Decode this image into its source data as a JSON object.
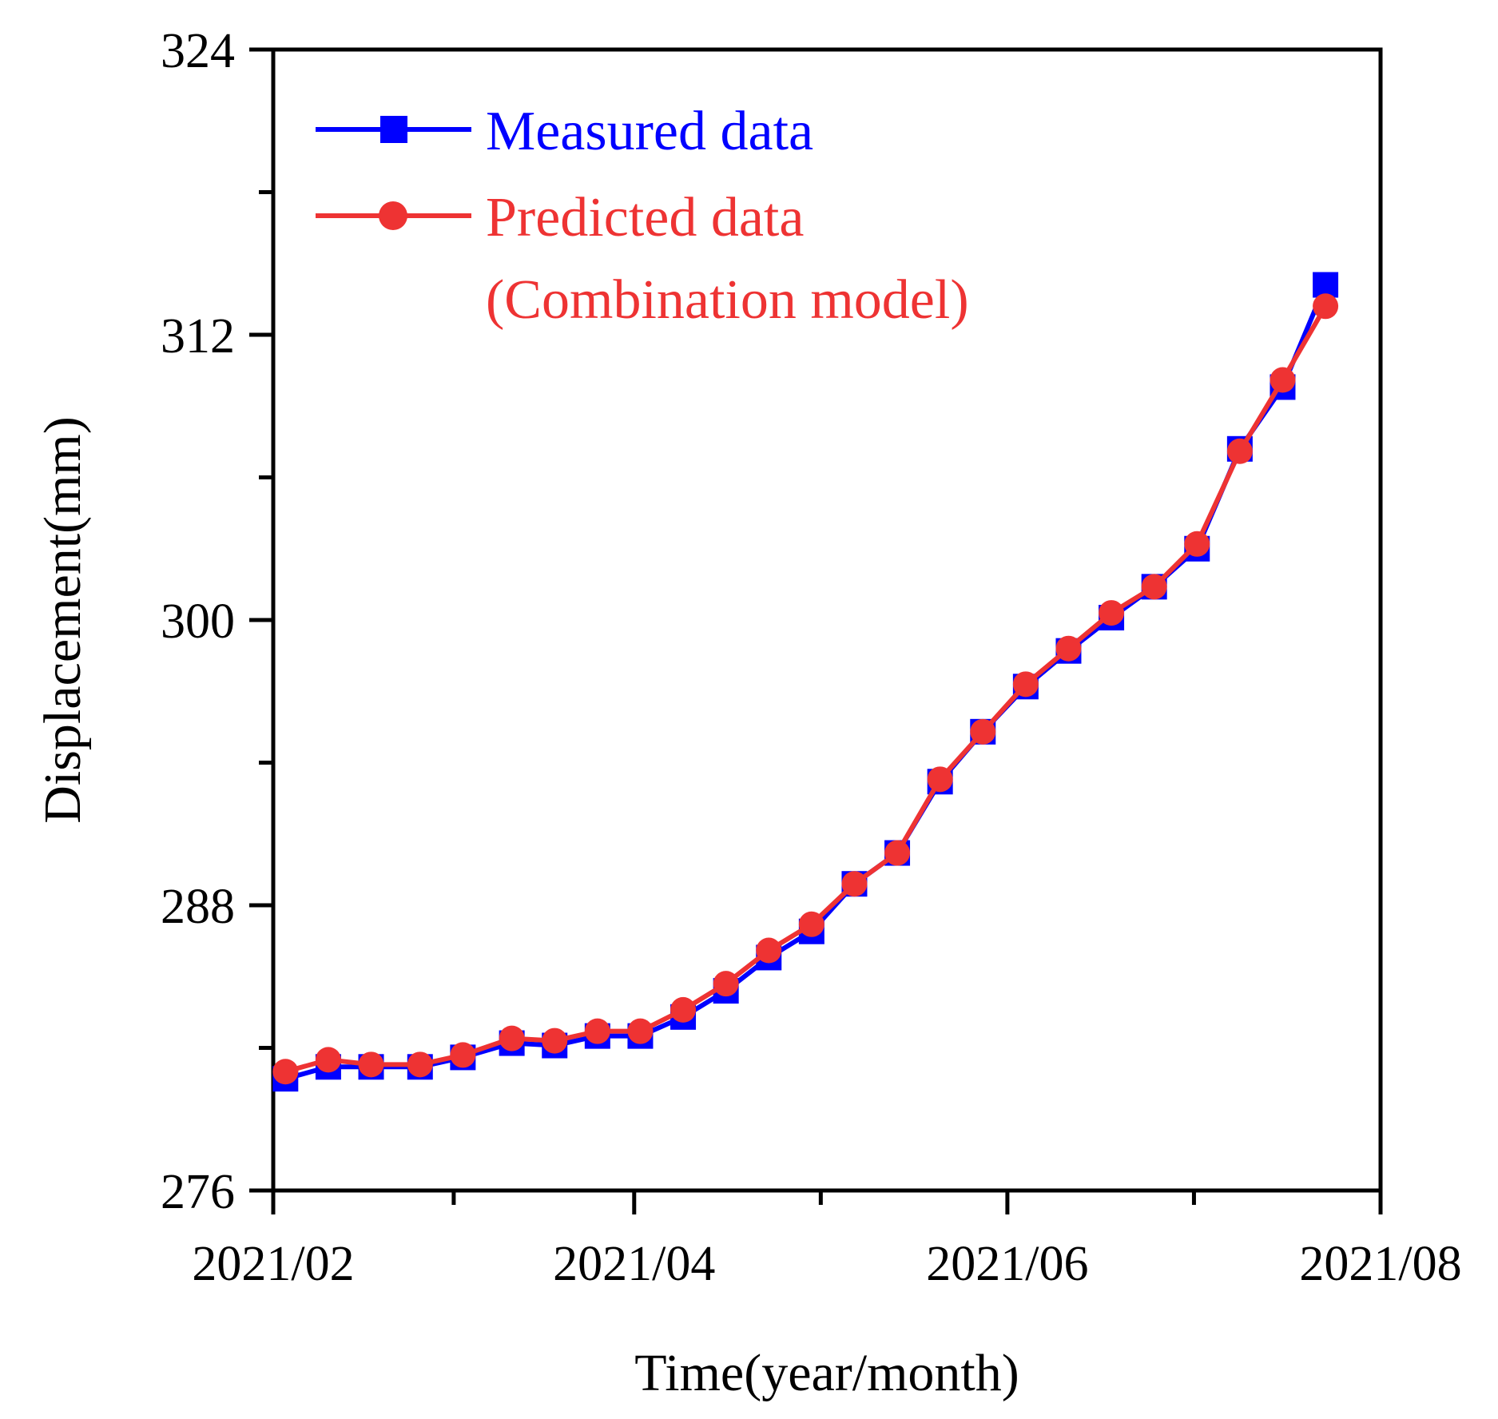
{
  "chart_data": {
    "type": "line",
    "title": "",
    "xlabel": "Time(year/month)",
    "ylabel": "Displacement(mm)",
    "ylim": [
      276,
      324
    ],
    "y_ticks": [
      276,
      288,
      300,
      312,
      324
    ],
    "x_ticks": [
      "2021/02",
      "2021/04",
      "2021/06",
      "2021/08"
    ],
    "x_unit": "days since 2021/02/01",
    "x_tick_values": [
      0,
      59,
      120,
      181
    ],
    "xlim": [
      0,
      181
    ],
    "x": [
      2,
      9,
      16,
      24,
      31,
      39,
      46,
      53,
      60,
      67,
      74,
      81,
      88,
      95,
      102,
      109,
      116,
      123,
      130,
      137,
      144,
      151,
      158,
      165,
      172
    ],
    "series": [
      {
        "name": "Measured data",
        "color": "#0000ff",
        "marker": "square",
        "values": [
          280.7,
          281.2,
          281.2,
          281.2,
          281.6,
          282.2,
          282.1,
          282.5,
          282.5,
          283.3,
          284.4,
          285.8,
          286.9,
          288.9,
          290.2,
          293.2,
          295.3,
          297.2,
          298.7,
          300.1,
          301.4,
          303.0,
          307.2,
          309.8,
          314.1
        ]
      },
      {
        "name": "Predicted data",
        "color": "#ff0000",
        "marker": "circle",
        "values": [
          281.0,
          281.5,
          281.3,
          281.3,
          281.7,
          282.4,
          282.3,
          282.7,
          282.7,
          283.6,
          284.7,
          286.1,
          287.2,
          288.9,
          290.2,
          293.3,
          295.3,
          297.3,
          298.8,
          300.3,
          301.4,
          303.2,
          307.1,
          310.1,
          313.2
        ]
      }
    ],
    "legend": [
      {
        "label": "Measured data",
        "color": "#0000ff",
        "text_color": "#0000ff"
      },
      {
        "label": "Predicted data",
        "label2": "(Combination model)",
        "color": "#ff0000",
        "text_color": "#ff0000"
      }
    ],
    "legend_position": "top-left",
    "grid": false
  }
}
